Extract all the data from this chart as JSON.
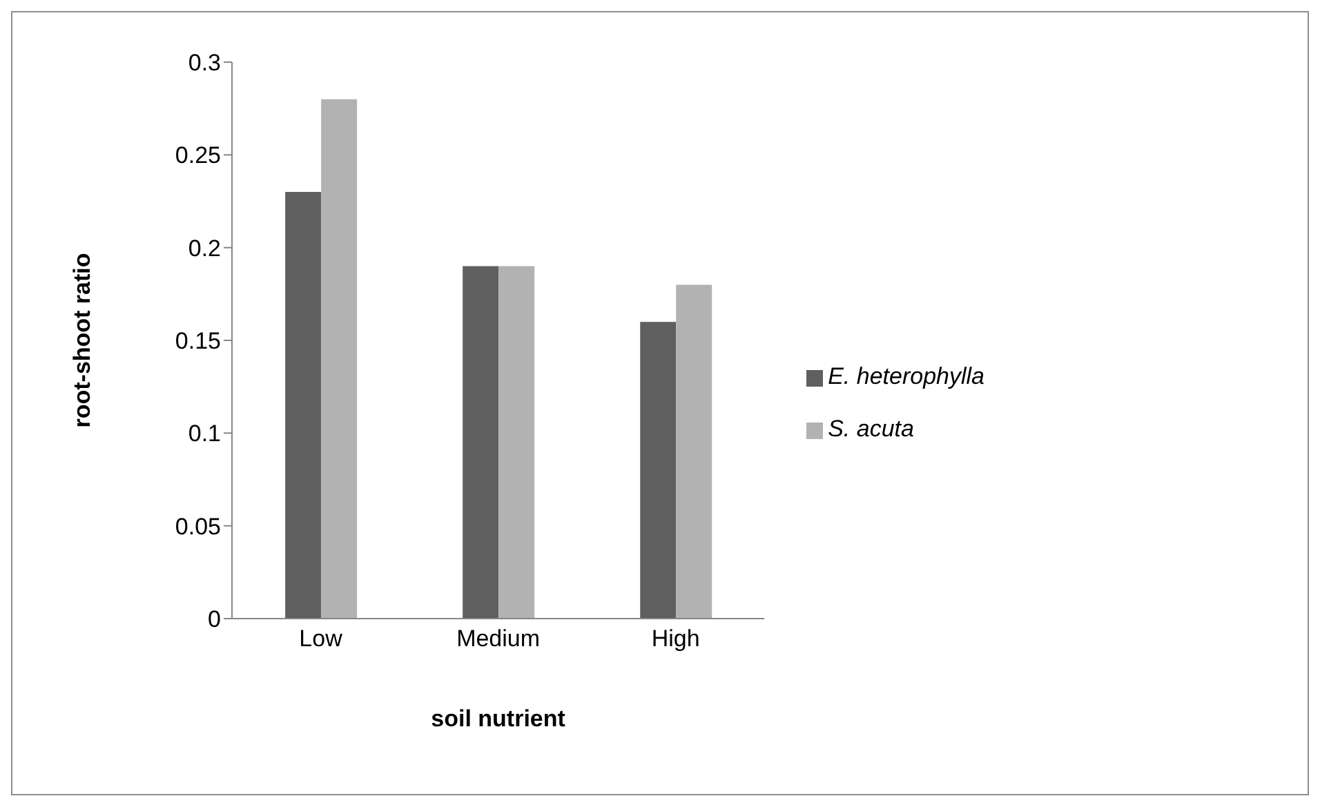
{
  "chart_data": {
    "type": "bar",
    "xlabel": "soil nutrient",
    "ylabel": "root-shoot ratio",
    "categories": [
      "Low",
      "Medium",
      "High"
    ],
    "series": [
      {
        "name": "E. heterophylla",
        "color": "#5f5f5f",
        "values": [
          0.23,
          0.19,
          0.16
        ]
      },
      {
        "name": "S. acuta",
        "color": "#b2b2b2",
        "values": [
          0.28,
          0.19,
          0.18
        ]
      }
    ],
    "ylim": [
      0,
      0.3
    ],
    "yticks": [
      0,
      0.05,
      0.1,
      0.15,
      0.2,
      0.25,
      0.3
    ],
    "grid": false,
    "legend": "right"
  }
}
